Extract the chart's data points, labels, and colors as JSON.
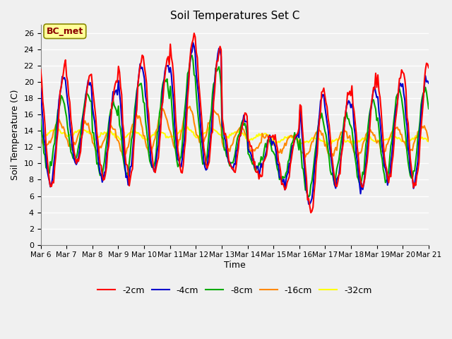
{
  "title": "Soil Temperatures Set C",
  "xlabel": "Time",
  "ylabel": "Soil Temperature (C)",
  "ylim": [
    0,
    27
  ],
  "yticks": [
    0,
    2,
    4,
    6,
    8,
    10,
    12,
    14,
    16,
    18,
    20,
    22,
    24,
    26
  ],
  "x_labels": [
    "Mar 6",
    "Mar 7",
    "Mar 8",
    "Mar 9",
    "Mar 10",
    "Mar 11",
    "Mar 12",
    "Mar 13",
    "Mar 14",
    "Mar 15",
    "Mar 16",
    "Mar 17",
    "Mar 18",
    "Mar 19",
    "Mar 20",
    "Mar 21"
  ],
  "annotation": "BC_met",
  "annotation_color": "#8B0000",
  "annotation_bg": "#FFFF99",
  "colors": {
    "-2cm": "#FF0000",
    "-4cm": "#0000CC",
    "-8cm": "#00AA00",
    "-16cm": "#FF8800",
    "-32cm": "#FFFF00"
  },
  "line_width": 1.5,
  "background_color": "#F0F0F0",
  "grid_color": "#FFFFFF",
  "legend_labels": [
    "-2cm",
    "-4cm",
    "-8cm",
    "-16cm",
    "-32cm"
  ]
}
